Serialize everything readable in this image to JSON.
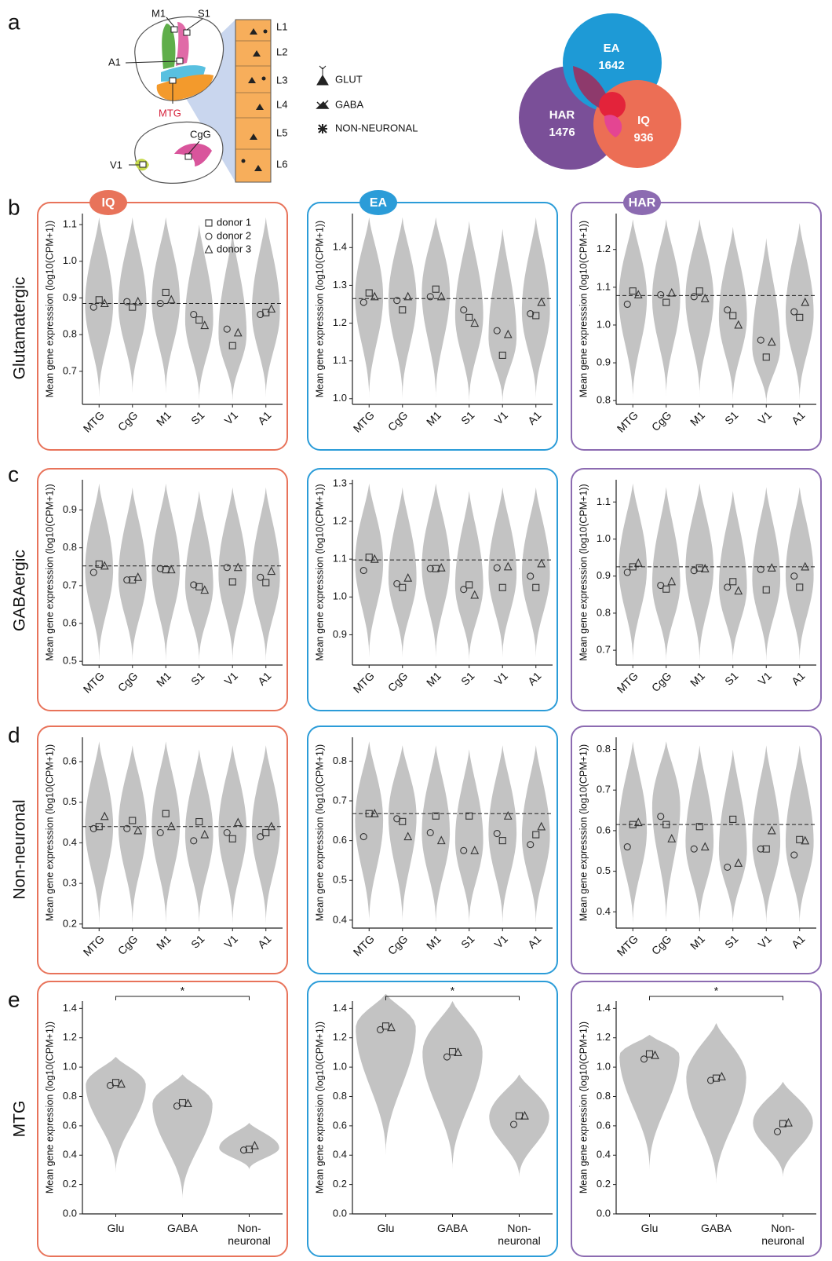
{
  "panel_labels": [
    "a",
    "b",
    "c",
    "d",
    "e"
  ],
  "row_labels": [
    "Glutamatergic",
    "GABAergic",
    "Non-neuronal",
    "MTG"
  ],
  "brain": {
    "regions": [
      "M1",
      "S1",
      "A1",
      "MTG",
      "CgG",
      "V1"
    ],
    "layers": [
      "L1",
      "L2",
      "L3",
      "L4",
      "L5",
      "L6"
    ]
  },
  "cell_types": [
    "GLUT",
    "GABA",
    "NON-NEURONAL"
  ],
  "venn": [
    {
      "name": "EA",
      "count": 1642
    },
    {
      "name": "HAR",
      "count": 1476
    },
    {
      "name": "IQ",
      "count": 936
    }
  ],
  "markers": [
    "square",
    "circle",
    "triangle"
  ],
  "chart_data": [
    {
      "type": "violin",
      "badge": "IQ",
      "frame_color": "#e8735a",
      "ylabel": "Mean gene expresssion (log10(CPM+1))",
      "categories": [
        "MTG",
        "CgG",
        "M1",
        "S1",
        "V1",
        "A1"
      ],
      "ylim": [
        0.61,
        1.13
      ],
      "yticks": [
        0.7,
        0.8,
        0.9,
        {
          "value": 1,
          "label": "1.0"
        },
        1.1
      ],
      "mean": 0.885,
      "violins": [
        [
          0.63,
          0.88,
          1.12
        ],
        [
          0.64,
          0.88,
          1.12
        ],
        [
          0.64,
          0.89,
          1.12
        ],
        [
          0.62,
          0.84,
          1.1
        ],
        [
          0.62,
          0.8,
          1.08
        ],
        [
          0.63,
          0.86,
          1.12
        ]
      ],
      "series": [
        {
          "name": "donor 1",
          "values": [
            0.895,
            0.875,
            0.915,
            0.84,
            0.77,
            0.86
          ]
        },
        {
          "name": "donor 2",
          "values": [
            0.875,
            0.89,
            0.885,
            0.855,
            0.815,
            0.855
          ]
        },
        {
          "name": "donor 3",
          "values": [
            0.885,
            0.89,
            0.895,
            0.825,
            0.805,
            0.87
          ]
        }
      ]
    },
    {
      "type": "violin",
      "badge": "EA",
      "frame_color": "#2b9cd8",
      "ylabel": "Mean gene expresssion (log10(CPM+1))",
      "categories": [
        "MTG",
        "CgG",
        "M1",
        "S1",
        "V1",
        "A1"
      ],
      "ylim": [
        0.985,
        1.49
      ],
      "yticks": [
        {
          "value": 1,
          "label": "1.0"
        },
        1.1,
        1.2,
        1.3,
        1.4
      ],
      "mean": 1.265,
      "violins": [
        [
          1.0,
          1.27,
          1.48
        ],
        [
          1.0,
          1.26,
          1.48
        ],
        [
          1.0,
          1.28,
          1.48
        ],
        [
          0.99,
          1.22,
          1.47
        ],
        [
          0.99,
          1.16,
          1.45
        ],
        [
          1.0,
          1.23,
          1.48
        ]
      ],
      "series": [
        {
          "values": [
            1.28,
            1.235,
            1.29,
            1.215,
            1.115,
            1.22
          ]
        },
        {
          "values": [
            1.255,
            1.26,
            1.27,
            1.235,
            1.18,
            1.225
          ]
        },
        {
          "values": [
            1.27,
            1.27,
            1.27,
            1.2,
            1.17,
            1.255
          ]
        }
      ]
    },
    {
      "type": "violin",
      "badge": "HAR",
      "frame_color": "#8c6bb1",
      "ylabel": "Mean gene expresssion (log10(CPM+1))",
      "categories": [
        "MTG",
        "CgG",
        "M1",
        "S1",
        "V1",
        "A1"
      ],
      "ylim": [
        0.79,
        1.295
      ],
      "yticks": [
        0.8,
        0.9,
        {
          "value": 1,
          "label": "1.0"
        },
        1.1,
        1.2
      ],
      "mean": 1.078,
      "violins": [
        [
          0.8,
          1.07,
          1.28
        ],
        [
          0.81,
          1.07,
          1.28
        ],
        [
          0.81,
          1.07,
          1.28
        ],
        [
          0.8,
          1.02,
          1.26
        ],
        [
          0.79,
          0.94,
          1.23
        ],
        [
          0.8,
          1.03,
          1.27
        ]
      ],
      "series": [
        {
          "values": [
            1.09,
            1.06,
            1.09,
            1.025,
            0.915,
            1.02
          ]
        },
        {
          "values": [
            1.055,
            1.08,
            1.075,
            1.04,
            0.96,
            1.035
          ]
        },
        {
          "values": [
            1.08,
            1.085,
            1.07,
            1.0,
            0.955,
            1.06
          ]
        }
      ]
    },
    {
      "type": "violin",
      "frame_color": "#e8735a",
      "ylabel": "Mean gene expresssion (log10(CPM+1))",
      "categories": [
        "MTG",
        "CgG",
        "M1",
        "S1",
        "V1",
        "A1"
      ],
      "ylim": [
        0.49,
        0.98
      ],
      "yticks": [
        0.5,
        0.6,
        0.7,
        0.8,
        0.9
      ],
      "mean": 0.752,
      "violins": [
        [
          0.5,
          0.74,
          0.97
        ],
        [
          0.5,
          0.72,
          0.96
        ],
        [
          0.5,
          0.74,
          0.97
        ],
        [
          0.5,
          0.7,
          0.95
        ],
        [
          0.5,
          0.73,
          0.96
        ],
        [
          0.5,
          0.72,
          0.96
        ]
      ],
      "series": [
        {
          "values": [
            0.757,
            0.715,
            0.742,
            0.697,
            0.71,
            0.708
          ]
        },
        {
          "values": [
            0.735,
            0.715,
            0.745,
            0.702,
            0.748,
            0.722
          ]
        },
        {
          "values": [
            0.752,
            0.722,
            0.742,
            0.688,
            0.748,
            0.738
          ]
        }
      ]
    },
    {
      "type": "violin",
      "frame_color": "#2b9cd8",
      "ylabel": "Mean gene expresssion (log10(CPM+1))",
      "categories": [
        "MTG",
        "CgG",
        "M1",
        "S1",
        "V1",
        "A1"
      ],
      "ylim": [
        0.82,
        1.31
      ],
      "yticks": [
        0.9,
        {
          "value": 1,
          "label": "1.0"
        },
        1.1,
        1.2,
        1.3
      ],
      "mean": 1.098,
      "violins": [
        [
          0.84,
          1.09,
          1.3
        ],
        [
          0.84,
          1.05,
          1.29
        ],
        [
          0.84,
          1.08,
          1.3
        ],
        [
          0.83,
          1.03,
          1.28
        ],
        [
          0.84,
          1.06,
          1.29
        ],
        [
          0.84,
          1.06,
          1.29
        ]
      ],
      "series": [
        {
          "values": [
            1.105,
            1.025,
            1.075,
            1.032,
            1.025,
            1.025
          ]
        },
        {
          "values": [
            1.07,
            1.035,
            1.075,
            1.02,
            1.077,
            1.055
          ]
        },
        {
          "values": [
            1.1,
            1.05,
            1.077,
            1.005,
            1.08,
            1.088
          ]
        }
      ]
    },
    {
      "type": "violin",
      "frame_color": "#8c6bb1",
      "ylabel": "Mean gene expresssion (log10(CPM+1))",
      "categories": [
        "MTG",
        "CgG",
        "M1",
        "S1",
        "V1",
        "A1"
      ],
      "ylim": [
        0.66,
        1.16
      ],
      "yticks": [
        0.7,
        0.8,
        0.9,
        {
          "value": 1,
          "label": "1.0"
        },
        1.1
      ],
      "mean": 0.925,
      "violins": [
        [
          0.67,
          0.92,
          1.15
        ],
        [
          0.67,
          0.88,
          1.14
        ],
        [
          0.67,
          0.92,
          1.15
        ],
        [
          0.67,
          0.87,
          1.13
        ],
        [
          0.67,
          0.89,
          1.14
        ],
        [
          0.67,
          0.9,
          1.14
        ]
      ],
      "series": [
        {
          "values": [
            0.925,
            0.865,
            0.922,
            0.885,
            0.863,
            0.87
          ]
        },
        {
          "values": [
            0.91,
            0.875,
            0.915,
            0.87,
            0.918,
            0.9
          ]
        },
        {
          "values": [
            0.935,
            0.885,
            0.92,
            0.86,
            0.922,
            0.925
          ]
        }
      ]
    },
    {
      "type": "violin",
      "frame_color": "#e8735a",
      "ylabel": "Mean gene expresssion (log10(CPM+1))",
      "categories": [
        "MTG",
        "CgG",
        "M1",
        "S1",
        "V1",
        "A1"
      ],
      "ylim": [
        0.19,
        0.66
      ],
      "yticks": [
        0.2,
        0.3,
        0.4,
        0.5,
        0.6
      ],
      "mean": 0.44,
      "violins": [
        [
          0.2,
          0.44,
          0.65
        ],
        [
          0.2,
          0.44,
          0.64
        ],
        [
          0.2,
          0.44,
          0.65
        ],
        [
          0.2,
          0.42,
          0.63
        ],
        [
          0.2,
          0.43,
          0.64
        ],
        [
          0.2,
          0.43,
          0.64
        ]
      ],
      "series": [
        {
          "values": [
            0.44,
            0.455,
            0.472,
            0.452,
            0.41,
            0.425
          ]
        },
        {
          "values": [
            0.435,
            0.435,
            0.425,
            0.405,
            0.425,
            0.415
          ]
        },
        {
          "values": [
            0.465,
            0.43,
            0.44,
            0.42,
            0.45,
            0.44
          ]
        }
      ]
    },
    {
      "type": "violin",
      "frame_color": "#2b9cd8",
      "ylabel": "Mean gene expresssion (log10(CPM+1))",
      "categories": [
        "MTG",
        "CgG",
        "M1",
        "S1",
        "V1",
        "A1"
      ],
      "ylim": [
        0.38,
        0.86
      ],
      "yticks": [
        0.4,
        0.5,
        0.6,
        0.7,
        0.8
      ],
      "mean": 0.668,
      "violins": [
        [
          0.39,
          0.65,
          0.85
        ],
        [
          0.39,
          0.66,
          0.84
        ],
        [
          0.39,
          0.62,
          0.84
        ],
        [
          0.39,
          0.6,
          0.83
        ],
        [
          0.39,
          0.62,
          0.84
        ],
        [
          0.39,
          0.61,
          0.84
        ]
      ],
      "series": [
        {
          "values": [
            0.668,
            0.648,
            0.662,
            0.662,
            0.6,
            0.615
          ]
        },
        {
          "values": [
            0.61,
            0.655,
            0.62,
            0.575,
            0.618,
            0.59
          ]
        },
        {
          "values": [
            0.668,
            0.61,
            0.6,
            0.575,
            0.662,
            0.635
          ]
        }
      ]
    },
    {
      "type": "violin",
      "frame_color": "#8c6bb1",
      "ylabel": "Mean gene expresssion (log10(CPM+1))",
      "categories": [
        "MTG",
        "CgG",
        "M1",
        "S1",
        "V1",
        "A1"
      ],
      "ylim": [
        0.36,
        0.83
      ],
      "yticks": [
        0.4,
        0.5,
        0.6,
        0.7,
        0.8
      ],
      "mean": 0.615,
      "violins": [
        [
          0.37,
          0.6,
          0.82
        ],
        [
          0.37,
          0.66,
          0.82
        ],
        [
          0.37,
          0.57,
          0.81
        ],
        [
          0.37,
          0.55,
          0.8
        ],
        [
          0.37,
          0.57,
          0.81
        ],
        [
          0.37,
          0.57,
          0.81
        ]
      ],
      "series": [
        {
          "values": [
            0.615,
            0.615,
            0.61,
            0.628,
            0.555,
            0.578
          ]
        },
        {
          "values": [
            0.56,
            0.635,
            0.555,
            0.51,
            0.555,
            0.54
          ]
        },
        {
          "values": [
            0.62,
            0.58,
            0.56,
            0.52,
            0.6,
            0.575
          ]
        }
      ]
    },
    {
      "type": "violin",
      "frame_color": "#e8735a",
      "ylabel": "Mean gene expression (log10(CPM+1))",
      "annotation": "*",
      "categories": [
        "Glu",
        "GABA",
        "Non-neuronal"
      ],
      "ylim": [
        0,
        1.45
      ],
      "yticks": [
        {
          "value": 0,
          "label": "0.0"
        },
        0.2,
        0.4,
        0.6,
        0.8,
        {
          "value": 1,
          "label": "1.0"
        },
        1.2,
        1.4
      ],
      "violins": [
        [
          0.28,
          0.88,
          1.07
        ],
        [
          0.1,
          0.75,
          0.95
        ],
        [
          0.3,
          0.45,
          0.62
        ]
      ],
      "series": [
        {
          "values": [
            0.895,
            0.757,
            0.44
          ]
        },
        {
          "values": [
            0.875,
            0.735,
            0.435
          ]
        },
        {
          "values": [
            0.885,
            0.752,
            0.465
          ]
        }
      ]
    },
    {
      "type": "violin",
      "frame_color": "#2b9cd8",
      "ylabel": "Mean gene expression (log10(CPM+1))",
      "annotation": "*",
      "categories": [
        "Glu",
        "GABA",
        "Non-neuronal"
      ],
      "ylim": [
        0,
        1.45
      ],
      "yticks": [
        {
          "value": 0,
          "label": "0.0"
        },
        0.2,
        0.4,
        0.6,
        0.8,
        {
          "value": 1,
          "label": "1.0"
        },
        1.2,
        1.4
      ],
      "violins": [
        [
          0.4,
          1.27,
          1.5
        ],
        [
          0.3,
          1.1,
          1.45
        ],
        [
          0.25,
          0.66,
          0.95
        ]
      ],
      "series": [
        {
          "values": [
            1.28,
            1.105,
            0.668
          ]
        },
        {
          "values": [
            1.255,
            1.07,
            0.61
          ]
        },
        {
          "values": [
            1.27,
            1.1,
            0.668
          ]
        }
      ]
    },
    {
      "type": "violin",
      "frame_color": "#8c6bb1",
      "ylabel": "Mean gene expression (log10(CPM+1))",
      "annotation": "*",
      "categories": [
        "Glu",
        "GABA",
        "Non-neuronal"
      ],
      "ylim": [
        0,
        1.45
      ],
      "yticks": [
        {
          "value": 0,
          "label": "0.0"
        },
        0.2,
        0.4,
        0.6,
        0.8,
        {
          "value": 1,
          "label": "1.0"
        },
        1.2,
        1.4
      ],
      "violins": [
        [
          0.3,
          1.08,
          1.22
        ],
        [
          0.2,
          0.93,
          1.3
        ],
        [
          0.25,
          0.62,
          0.9
        ]
      ],
      "series": [
        {
          "values": [
            1.09,
            0.925,
            0.615
          ]
        },
        {
          "values": [
            1.055,
            0.91,
            0.56
          ]
        },
        {
          "values": [
            1.08,
            0.935,
            0.62
          ]
        }
      ]
    }
  ]
}
